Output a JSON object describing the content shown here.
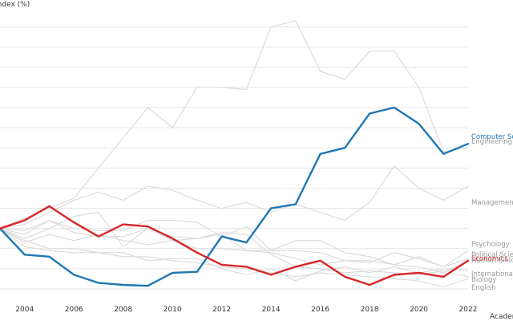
{
  "chart_data": {
    "type": "line",
    "title": "",
    "ylabel": "Index (%)",
    "xlabel": "Academic Year",
    "ylim": [
      0,
      135
    ],
    "yticks": [
      0,
      10,
      20,
      30,
      40,
      50,
      60,
      70,
      80,
      90,
      100,
      110,
      120,
      130
    ],
    "xlim": [
      2003,
      2022
    ],
    "xticks": [
      "2004",
      "2006",
      "2008",
      "2010",
      "2012",
      "2014",
      "2016",
      "2018",
      "2020",
      "2022"
    ],
    "grid": true,
    "x": [
      2003,
      2004,
      2005,
      2006,
      2007,
      2008,
      2009,
      2010,
      2011,
      2012,
      2013,
      2014,
      2015,
      2016,
      2017,
      2018,
      2019,
      2020,
      2021,
      2022
    ],
    "colors": {
      "highlight_blue": "#1f77b4",
      "highlight_red": "#d62728",
      "muted": "#d9d9d9",
      "muted_label": "#999999"
    },
    "series": [
      {
        "name": "Computer Science",
        "highlight": "blue",
        "values": [
          30,
          17,
          16,
          7,
          3,
          2,
          1.5,
          8,
          8.5,
          26,
          23,
          40,
          42,
          67,
          70,
          87,
          90,
          82,
          67,
          72
        ]
      },
      {
        "name": "Economics",
        "highlight": "red",
        "values": [
          30,
          34,
          41,
          33,
          26,
          32,
          31,
          25,
          18,
          12,
          11,
          7,
          11,
          14,
          6,
          2,
          7,
          8,
          6,
          14
        ]
      },
      {
        "name": "Engineering",
        "values": [
          30,
          35,
          40,
          45,
          60,
          75,
          90,
          80,
          100,
          100,
          99,
          130,
          133,
          108,
          104,
          118,
          118,
          100,
          68,
          70
        ]
      },
      {
        "name": "Management",
        "values": [
          30,
          32,
          38,
          44,
          48,
          44,
          51,
          49,
          44,
          40,
          43,
          38,
          42,
          38,
          34,
          43,
          61,
          50,
          44,
          51
        ]
      },
      {
        "name": "Psychology",
        "values": [
          30,
          27,
          34,
          30,
          29,
          29,
          34,
          34,
          33,
          26,
          31,
          19,
          24,
          24,
          18,
          16,
          12,
          16,
          11,
          19
        ]
      },
      {
        "name": "Political Science",
        "values": [
          30,
          29,
          34,
          28,
          26,
          26,
          30,
          24,
          25,
          27,
          19,
          19,
          19,
          18,
          14,
          13,
          18,
          15,
          11,
          15
        ]
      },
      {
        "name": "Human Biology",
        "values": [
          30,
          23,
          27,
          24,
          27,
          24,
          22,
          24,
          20,
          20,
          19,
          18,
          15,
          12,
          14,
          14,
          12,
          11,
          8,
          14
        ]
      },
      {
        "name": "International",
        "values": [
          30,
          21,
          19,
          18,
          18,
          18,
          14,
          15,
          15,
          10,
          7,
          10,
          4,
          9,
          11,
          8,
          11,
          8,
          10,
          9
        ]
      },
      {
        "name": "Biology",
        "values": [
          30,
          25,
          30,
          36,
          38,
          21,
          30,
          26,
          25,
          28,
          27,
          17,
          11,
          10,
          8,
          9,
          8,
          7,
          9,
          6
        ]
      },
      {
        "name": "English",
        "values": [
          30,
          24,
          20,
          20,
          18,
          16,
          16,
          14,
          13,
          11,
          10,
          8,
          6,
          8,
          7,
          6,
          5,
          4,
          1,
          5
        ]
      }
    ]
  }
}
